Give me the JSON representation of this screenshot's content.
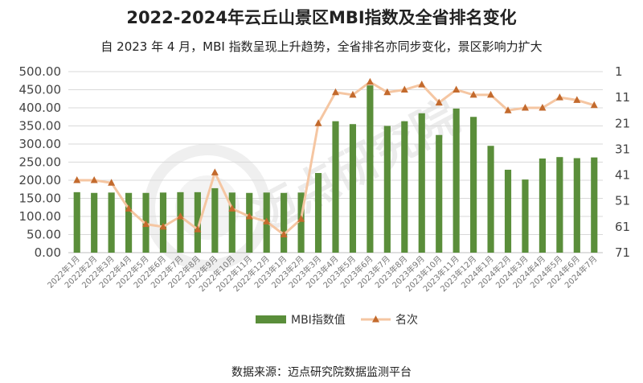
{
  "title": "2022-2024年云丘山景区MBI指数及全省排名变化",
  "subtitle": "自 2023 年 4 月，MBI 指数呈现上升趋势，全省排名亦同步变化，景区影响力扩大",
  "source": "数据来源：迈点研究院数据监测平台",
  "watermark": "迈点研究院",
  "colors": {
    "bar": "#5a8e3a",
    "line": "#f5c6a2",
    "marker": "#c36a2d",
    "grid": "#d9d9d9"
  },
  "chart_data": {
    "type": "bar+line",
    "categories": [
      "2022年1月",
      "2022年2月",
      "2022年3月",
      "2022年4月",
      "2022年5月",
      "2022年6月",
      "2022年7月",
      "2022年8月",
      "2022年9月",
      "2022年10月",
      "2022年11月",
      "2022年12月",
      "2023年1月",
      "2023年2月",
      "2023年3月",
      "2023年4月",
      "2023年5月",
      "2023年6月",
      "2023年7月",
      "2023年8月",
      "2023年9月",
      "2023年10月",
      "2023年11月",
      "2023年12月",
      "2024年1月",
      "2024年2月",
      "2024年3月",
      "2024年4月",
      "2024年5月",
      "2024年6月",
      "2024年7月"
    ],
    "y_left": {
      "min": 0,
      "max": 500,
      "step": 50,
      "ticks": [
        "0.00",
        "50.00",
        "100.00",
        "150.00",
        "200.00",
        "250.00",
        "300.00",
        "350.00",
        "400.00",
        "450.00",
        "500.00"
      ]
    },
    "y_right": {
      "min": 1,
      "max": 71,
      "reversed": true,
      "ticks": [
        "1",
        "11",
        "21",
        "31",
        "41",
        "51",
        "61",
        "71"
      ]
    },
    "series": [
      {
        "name": "MBI指数值",
        "type": "bar",
        "axis": "left",
        "values": [
          167,
          165,
          166,
          165,
          165,
          166,
          167,
          167,
          178,
          166,
          165,
          166,
          165,
          166,
          220,
          363,
          355,
          462,
          350,
          363,
          385,
          325,
          398,
          375,
          295,
          229,
          202,
          260,
          264,
          261,
          263
        ]
      },
      {
        "name": "名次",
        "type": "line",
        "axis": "right",
        "values": [
          43,
          43,
          44,
          54,
          60,
          61,
          57,
          62,
          40,
          54,
          57,
          59,
          64,
          58,
          21,
          9,
          10,
          5,
          9,
          8,
          6,
          13,
          8,
          10,
          10,
          16,
          15,
          15,
          11,
          12,
          14
        ]
      }
    ],
    "legend": "bottom-center"
  }
}
